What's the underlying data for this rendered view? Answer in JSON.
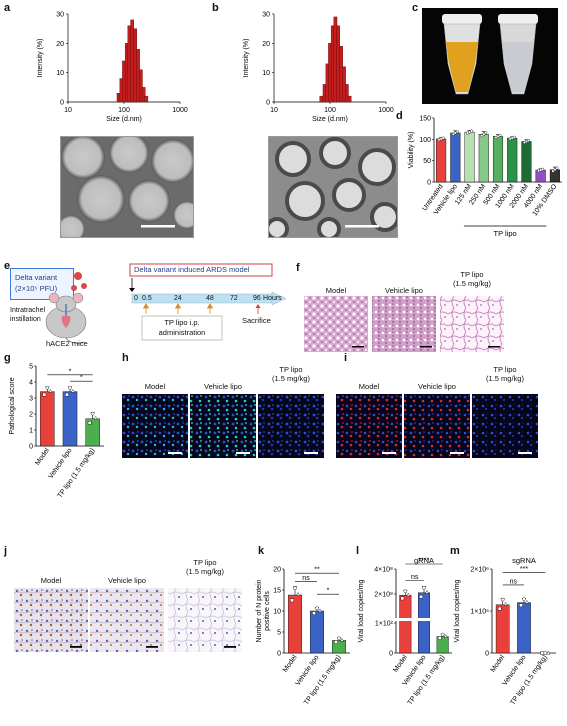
{
  "panels": {
    "a": "a",
    "b": "b",
    "c": "c",
    "d": "d",
    "e": "e",
    "f": "f",
    "g": "g",
    "h": "h",
    "i": "i",
    "j": "j",
    "k": "k",
    "l": "l",
    "m": "m"
  },
  "dls_a": {
    "ylabel": "Intensity (%)",
    "xlabel": "Size (d.nm)",
    "xticks": [
      "10",
      "100",
      "1000"
    ],
    "yticks": [
      "0",
      "10",
      "20",
      "30"
    ],
    "chart_data": {
      "type": "bar",
      "x_log": true,
      "x": [
        80,
        90,
        100,
        112,
        125,
        140,
        158,
        178,
        200,
        224,
        250
      ],
      "values": [
        3,
        8,
        14,
        20,
        26,
        28,
        25,
        18,
        11,
        5,
        2
      ],
      "ylim": [
        0,
        30
      ],
      "xlim": [
        10,
        1000
      ],
      "color": "#c41e1e"
    }
  },
  "dls_b": {
    "ylabel": "Intensity (%)",
    "xlabel": "Size (d.nm)",
    "xticks": [
      "10",
      "100",
      "1000"
    ],
    "yticks": [
      "0",
      "10",
      "20",
      "30"
    ],
    "chart_data": {
      "type": "bar",
      "x_log": true,
      "x": [
        70,
        80,
        90,
        100,
        112,
        125,
        140,
        158,
        178,
        200,
        224
      ],
      "values": [
        2,
        6,
        13,
        20,
        26,
        29,
        26,
        19,
        12,
        6,
        2
      ],
      "ylim": [
        0,
        30
      ],
      "xlim": [
        10,
        1000
      ],
      "color": "#c41e1e"
    }
  },
  "viability": {
    "ylabel": "Viability (%)",
    "yticks": [
      "0",
      "50",
      "100",
      "150"
    ],
    "group_label": "TP lipo",
    "chart_data": {
      "type": "bar",
      "ylim": [
        0,
        150
      ],
      "categories": [
        "Untreated",
        "Vehicle lipo",
        "125 nM",
        "250 nM",
        "500 nM",
        "1000 nM",
        "2000 nM",
        "4000 nM",
        "10% DMSO"
      ],
      "values": [
        101,
        115,
        117,
        112,
        107,
        103,
        95,
        28,
        29
      ],
      "errors": [
        3,
        5,
        4,
        6,
        4,
        3,
        4,
        3,
        6
      ],
      "colors": [
        "#e8413c",
        "#3b63c6",
        "#b7dfb0",
        "#88c98a",
        "#56b05f",
        "#2e9148",
        "#1e6b35",
        "#8e4fc2",
        "#333333"
      ]
    }
  },
  "model_e": {
    "delta_variant": "Delta variant",
    "dose": "(2×10⁵ PFU)",
    "ards": "Delta variant induced ARDS model",
    "timeline": [
      "0",
      "0.5",
      "24",
      "48",
      "72",
      "96"
    ],
    "hours": "Hours",
    "instill": "Intratrachel\ninstillation",
    "mice": "hACE2 mice",
    "admin": "TP lipo i.p.\nadministration",
    "sacrifice": "Sacrifice"
  },
  "group_labels": {
    "model": "Model",
    "vehicle": "Vehicle lipo",
    "tp": "TP lipo",
    "tp_dose": "(1.5 mg/kg)"
  },
  "path_g": {
    "ylabel": "Pathological score",
    "yticks": [
      "0",
      "1",
      "2",
      "3",
      "4",
      "5"
    ],
    "sig": [
      "*",
      "*"
    ],
    "chart_data": {
      "type": "bar",
      "ylim": [
        0,
        5
      ],
      "categories": [
        "Model",
        "Vehicle lipo",
        "TP lipo (1.5 mg/kg)"
      ],
      "values": [
        3.4,
        3.4,
        1.7
      ],
      "errors": [
        0.3,
        0.3,
        0.4
      ],
      "colors": [
        "#e8413c",
        "#3b63c6",
        "#4cae4c"
      ]
    }
  },
  "nprot_k": {
    "ylabel": "Number of N protein\npositive cells",
    "yticks": [
      "0",
      "5",
      "10",
      "15",
      "20"
    ],
    "sig": [
      "**",
      "ns",
      "*"
    ],
    "chart_data": {
      "type": "bar",
      "ylim": [
        0,
        20
      ],
      "categories": [
        "Model",
        "Vehicle lipo",
        "TP lipo (1.5 mg/kg)"
      ],
      "values": [
        13.8,
        10.0,
        3.0
      ],
      "errors": [
        2.0,
        0.8,
        0.6
      ],
      "colors": [
        "#e8413c",
        "#3b63c6",
        "#4cae4c"
      ]
    }
  },
  "grna_l": {
    "title": "gRNA",
    "ylabel": "Viral load copies/mg",
    "yticks": [
      "0",
      "1×10²",
      "2×10⁸",
      "4×10⁸"
    ],
    "sig": [
      "****",
      "ns"
    ],
    "chart_data": {
      "type": "bar",
      "categories": [
        "Model",
        "Vehicle lipo",
        "TP lipo (1.5 mg/kg)"
      ],
      "values": [
        190000000.0,
        210000000.0,
        55
      ],
      "errors": [
        40000000.0,
        50000000.0,
        8
      ],
      "colors": [
        "#e8413c",
        "#3b63c6",
        "#4cae4c"
      ]
    }
  },
  "sgrna_m": {
    "title": "sgRNA",
    "ylabel": "Viral load copies/mg",
    "yticks": [
      "0",
      "1×10⁶",
      "2×10⁶"
    ],
    "sig": [
      "***",
      "ns"
    ],
    "chart_data": {
      "type": "bar",
      "ylim": [
        0,
        2000000
      ],
      "categories": [
        "Model",
        "Vehicle lipo",
        "TP lipo (1.5 mg/kg)"
      ],
      "values": [
        1150000,
        1200000,
        0
      ],
      "errors": [
        150000,
        100000,
        0
      ],
      "colors": [
        "#e8413c",
        "#3b63c6",
        "#4cae4c"
      ]
    }
  }
}
